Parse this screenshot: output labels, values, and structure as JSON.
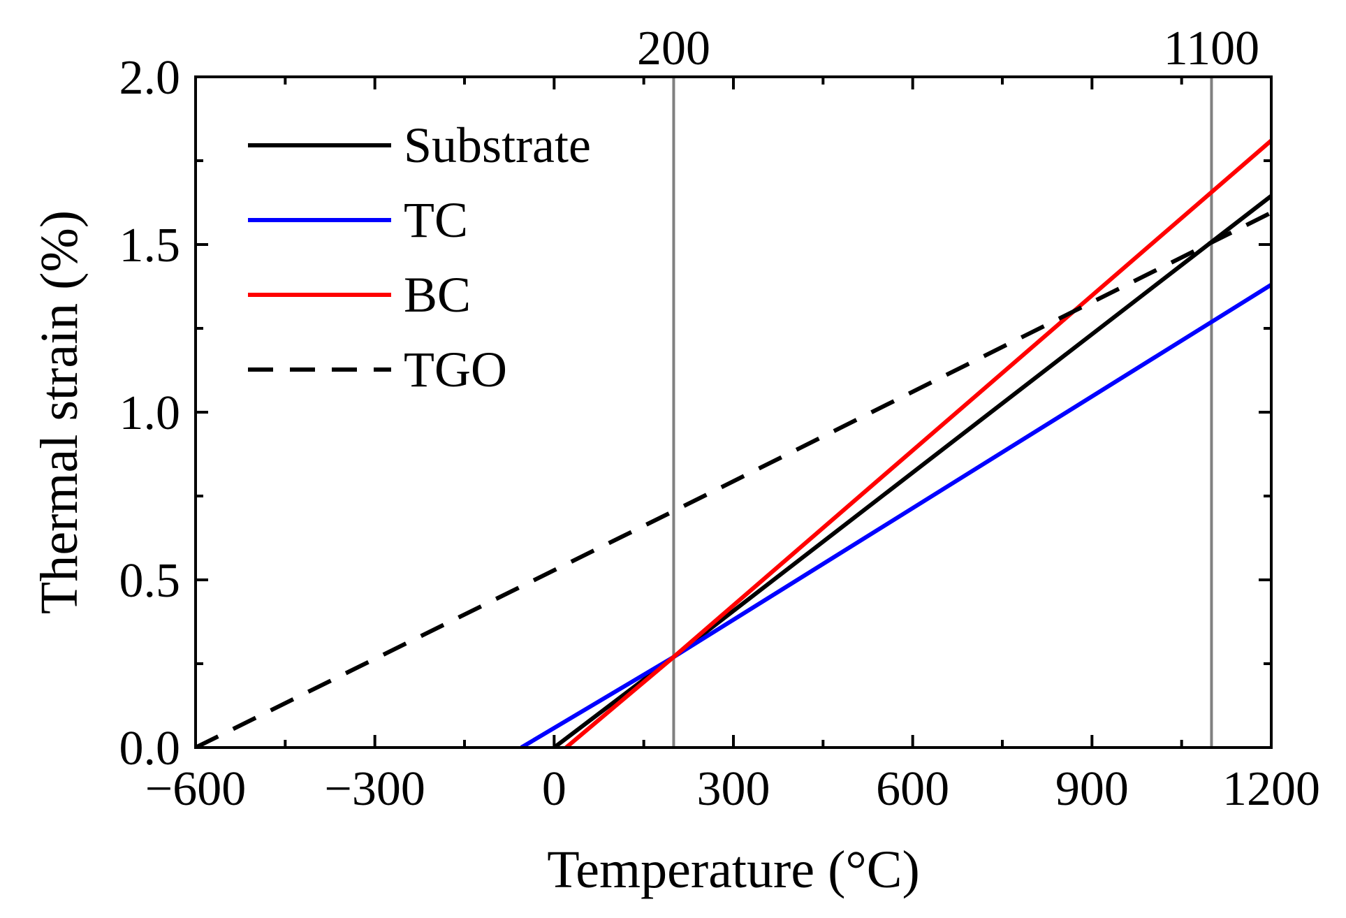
{
  "chart_data": {
    "type": "line",
    "xlabel": "Temperature (°C)",
    "ylabel": "Thermal strain (%)",
    "xlim": [
      -600,
      1200
    ],
    "ylim": [
      0,
      2.0
    ],
    "xticks": [
      -600,
      -300,
      0,
      300,
      600,
      900,
      1200
    ],
    "xtick_labels": [
      "−600",
      "−300",
      "0",
      "300",
      "600",
      "900",
      "1200"
    ],
    "yticks": [
      0,
      0.5,
      1.0,
      1.5,
      2.0
    ],
    "ytick_labels": [
      "0.0",
      "0.5",
      "1.0",
      "1.5",
      "2.0"
    ],
    "reference_lines": [
      {
        "x": 200,
        "label": "200"
      },
      {
        "x": 1100,
        "label": "1100"
      }
    ],
    "legend_position": "top-left",
    "series": [
      {
        "name": "Substrate",
        "color": "#000000",
        "dash": "solid",
        "x": [
          0,
          200,
          1200
        ],
        "y": [
          0.0,
          0.27,
          1.645
        ]
      },
      {
        "name": "TC",
        "color": "#0000ff",
        "dash": "solid",
        "x": [
          -55,
          200,
          1200
        ],
        "y": [
          0.0,
          0.27,
          1.38
        ]
      },
      {
        "name": "BC",
        "color": "#ff0000",
        "dash": "solid",
        "x": [
          20,
          200,
          1200
        ],
        "y": [
          0.0,
          0.27,
          1.81
        ]
      },
      {
        "name": "TGO",
        "color": "#000000",
        "dash": "dashed",
        "x": [
          -600,
          200,
          1200
        ],
        "y": [
          0.0,
          0.705,
          1.595
        ]
      }
    ]
  }
}
